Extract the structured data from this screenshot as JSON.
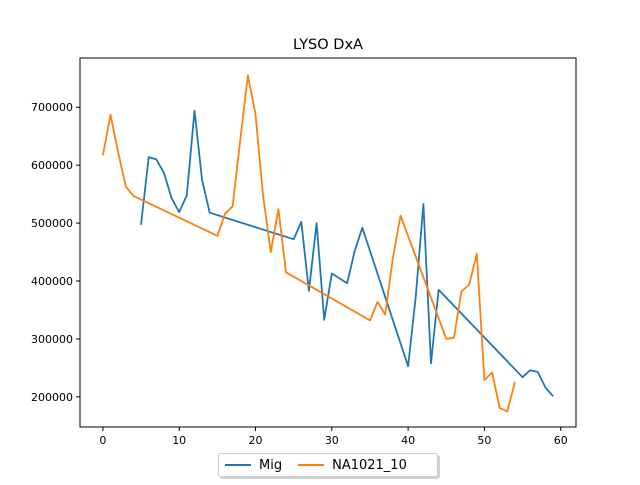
{
  "chart_data": {
    "type": "line",
    "title": "LYSO DxA",
    "xlabel": "",
    "ylabel": "",
    "xlim": [
      -3,
      62
    ],
    "ylim": [
      148000,
      785000
    ],
    "xticks": [
      0,
      10,
      20,
      30,
      40,
      50,
      60
    ],
    "xtick_labels": [
      "0",
      "10",
      "20",
      "30",
      "40",
      "50",
      "60"
    ],
    "yticks": [
      200000,
      300000,
      400000,
      500000,
      600000,
      700000
    ],
    "ytick_labels": [
      "200000",
      "300000",
      "400000",
      "500000",
      "600000",
      "700000"
    ],
    "grid": false,
    "legend_position": "bottom-center",
    "series": [
      {
        "name": "Mig",
        "color": "#1f77b4",
        "x": [
          5,
          6,
          7,
          8,
          9,
          10,
          11,
          12,
          13,
          14,
          25,
          26,
          27,
          28,
          29,
          30,
          32,
          33,
          34,
          40,
          41,
          42,
          43,
          44,
          55,
          56,
          57,
          58,
          59
        ],
        "y": [
          497000,
          614000,
          610000,
          587000,
          543000,
          519000,
          548000,
          694000,
          574000,
          518000,
          472000,
          502000,
          383000,
          500000,
          333000,
          413000,
          396000,
          452000,
          492000,
          253000,
          374000,
          533000,
          258000,
          385000,
          234000,
          246000,
          243000,
          216000,
          201000
        ]
      },
      {
        "name": "NA1021_10",
        "color": "#ff7f0e",
        "x": [
          0,
          1,
          2,
          3,
          4,
          15,
          16,
          17,
          18,
          19,
          20,
          21,
          22,
          23,
          24,
          35,
          36,
          37,
          38,
          39,
          45,
          46,
          47,
          48,
          49,
          50,
          51,
          52,
          53,
          54
        ],
        "y": [
          617000,
          687000,
          622000,
          563000,
          547000,
          478000,
          516000,
          529000,
          643000,
          755000,
          688000,
          547000,
          450000,
          524000,
          415000,
          332000,
          364000,
          342000,
          440000,
          513000,
          300000,
          302000,
          382000,
          394000,
          447000,
          229000,
          242000,
          181000,
          175000,
          226000
        ]
      }
    ]
  }
}
